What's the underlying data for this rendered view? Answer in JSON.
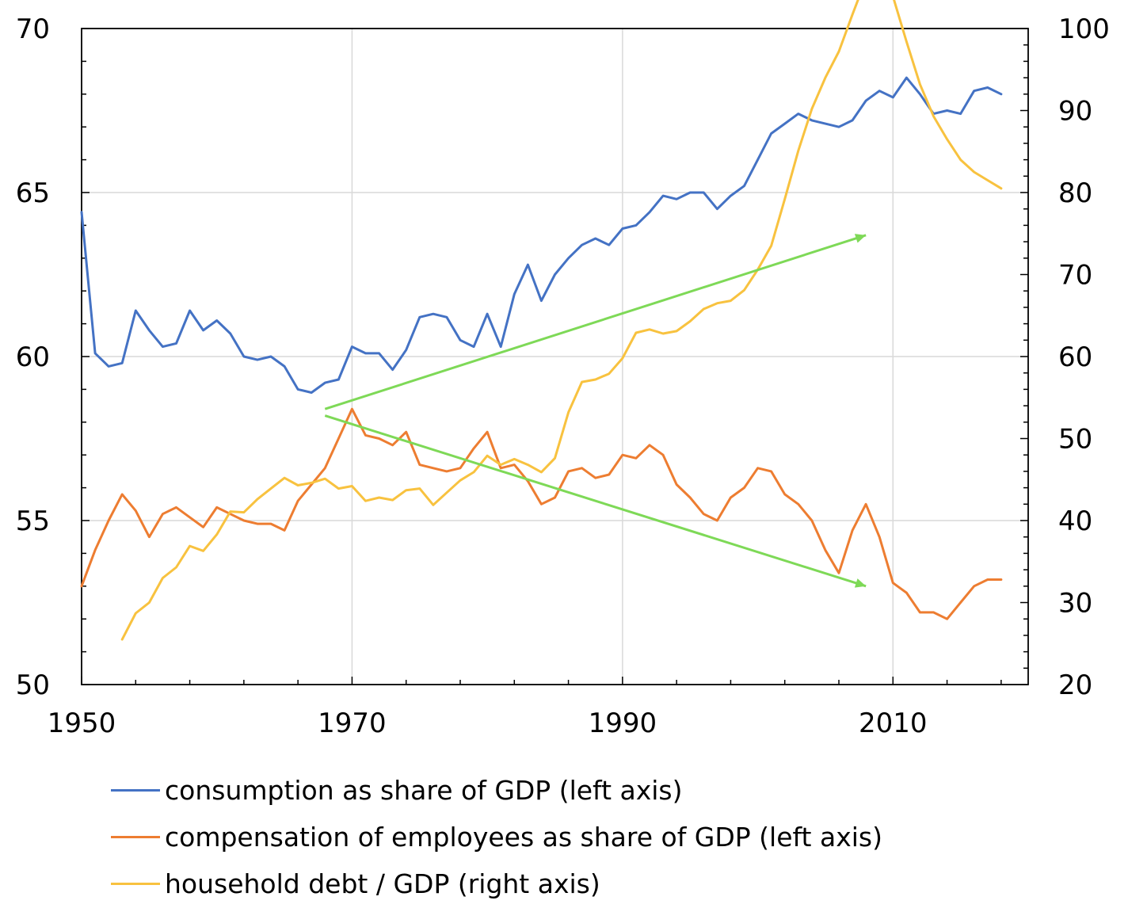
{
  "chart_data": {
    "type": "line",
    "left_axis": {
      "ylim": [
        50,
        70
      ],
      "ticks": [
        "50",
        "55",
        "60",
        "65",
        "70"
      ]
    },
    "right_axis": {
      "ylim": [
        20,
        100
      ],
      "ticks": [
        "20",
        "30",
        "40",
        "50",
        "60",
        "70",
        "80",
        "90",
        "100"
      ]
    },
    "x_axis": {
      "xlim": [
        1950,
        2020
      ],
      "ticks": [
        "1950",
        "1970",
        "1990",
        "2010"
      ]
    },
    "grid": true,
    "legend_position": "bottom-left",
    "series": [
      {
        "name": "consumption as share of GDP (left axis)",
        "axis": "left",
        "color": "#4472C4",
        "x": [
          1950,
          1951,
          1952,
          1953,
          1954,
          1955,
          1956,
          1957,
          1958,
          1959,
          1960,
          1961,
          1962,
          1963,
          1964,
          1965,
          1966,
          1967,
          1968,
          1969,
          1970,
          1971,
          1972,
          1973,
          1974,
          1975,
          1976,
          1977,
          1978,
          1979,
          1980,
          1981,
          1982,
          1983,
          1984,
          1985,
          1986,
          1987,
          1988,
          1989,
          1990,
          1991,
          1992,
          1993,
          1994,
          1995,
          1996,
          1997,
          1998,
          1999,
          2000,
          2001,
          2002,
          2003,
          2004,
          2005,
          2006,
          2007,
          2008,
          2009,
          2010,
          2011,
          2012,
          2013,
          2014,
          2015,
          2016,
          2017,
          2018
        ],
        "values": [
          64.4,
          60.1,
          59.7,
          59.8,
          61.4,
          60.8,
          60.3,
          60.4,
          61.4,
          60.8,
          61.1,
          60.7,
          60.0,
          59.9,
          60.0,
          59.7,
          59.0,
          58.9,
          59.2,
          59.3,
          60.3,
          60.1,
          60.1,
          59.6,
          60.2,
          61.2,
          61.3,
          61.2,
          60.5,
          60.3,
          61.3,
          60.3,
          61.9,
          62.8,
          61.7,
          62.5,
          63.0,
          63.4,
          63.6,
          63.4,
          63.9,
          64.0,
          64.4,
          64.9,
          64.8,
          65.0,
          65.0,
          64.5,
          64.9,
          65.2,
          66.0,
          66.8,
          67.1,
          67.4,
          67.2,
          67.1,
          67.0,
          67.2,
          67.8,
          68.1,
          67.9,
          68.5,
          68.0,
          67.4,
          67.5,
          67.4,
          68.1,
          68.2,
          68.0
        ]
      },
      {
        "name": "compensation of employees as share of GDP (left axis)",
        "axis": "left",
        "color": "#ED7D31",
        "x": [
          1950,
          1951,
          1952,
          1953,
          1954,
          1955,
          1956,
          1957,
          1958,
          1959,
          1960,
          1961,
          1962,
          1963,
          1964,
          1965,
          1966,
          1967,
          1968,
          1969,
          1970,
          1971,
          1972,
          1973,
          1974,
          1975,
          1976,
          1977,
          1978,
          1979,
          1980,
          1981,
          1982,
          1983,
          1984,
          1985,
          1986,
          1987,
          1988,
          1989,
          1990,
          1991,
          1992,
          1993,
          1994,
          1995,
          1996,
          1997,
          1998,
          1999,
          2000,
          2001,
          2002,
          2003,
          2004,
          2005,
          2006,
          2007,
          2008,
          2009,
          2010,
          2011,
          2012,
          2013,
          2014,
          2015,
          2016,
          2017,
          2018
        ],
        "values": [
          53.0,
          54.1,
          55.0,
          55.8,
          55.3,
          54.5,
          55.2,
          55.4,
          55.1,
          54.8,
          55.4,
          55.2,
          55.0,
          54.9,
          54.9,
          54.7,
          55.6,
          56.1,
          56.6,
          57.5,
          58.4,
          57.6,
          57.5,
          57.3,
          57.7,
          56.7,
          56.6,
          56.5,
          56.6,
          57.2,
          57.7,
          56.6,
          56.7,
          56.2,
          55.5,
          55.7,
          56.5,
          56.6,
          56.3,
          56.4,
          57.0,
          56.9,
          57.3,
          57.0,
          56.1,
          55.7,
          55.2,
          55.0,
          55.7,
          56.0,
          56.6,
          56.5,
          55.8,
          55.5,
          55.0,
          54.1,
          53.4,
          54.7,
          55.5,
          54.5,
          53.1,
          52.8,
          52.2,
          52.2,
          52.0,
          52.5,
          53.0,
          53.2,
          53.2
        ]
      },
      {
        "name": "household debt / GDP (right axis)",
        "axis": "right",
        "color": "#F8C23F",
        "x": [
          1953,
          1954,
          1955,
          1956,
          1957,
          1958,
          1959,
          1960,
          1961,
          1962,
          1963,
          1964,
          1965,
          1966,
          1967,
          1968,
          1969,
          1970,
          1971,
          1972,
          1973,
          1974,
          1975,
          1976,
          1977,
          1978,
          1979,
          1980,
          1981,
          1982,
          1983,
          1984,
          1985,
          1986,
          1987,
          1988,
          1989,
          1990,
          1991,
          1992,
          1993,
          1994,
          1995,
          1996,
          1997,
          1998,
          1999,
          2000,
          2001,
          2002,
          2003,
          2004,
          2005,
          2006,
          2007,
          2008,
          2009,
          2010,
          2011,
          2012,
          2013,
          2014,
          2015,
          2016,
          2017,
          2018
        ],
        "values": [
          25.5,
          28.7,
          30.0,
          33.0,
          34.3,
          36.9,
          36.3,
          38.3,
          41.1,
          41.0,
          42.6,
          43.9,
          45.2,
          44.3,
          44.6,
          45.1,
          43.9,
          44.2,
          42.4,
          42.8,
          42.5,
          43.7,
          43.9,
          41.9,
          43.4,
          44.9,
          45.9,
          47.9,
          46.8,
          47.5,
          46.8,
          45.9,
          47.6,
          53.2,
          56.9,
          57.2,
          57.9,
          59.8,
          62.9,
          63.3,
          62.8,
          63.1,
          64.3,
          65.8,
          66.5,
          66.8,
          68.1,
          70.6,
          73.5,
          79.2,
          85.1,
          90.2,
          94.0,
          97.2,
          101.7,
          106.0,
          107.0,
          103.9,
          98.4,
          93.2,
          89.3,
          86.5,
          84.0,
          82.5,
          81.5,
          80.5
        ]
      }
    ]
  },
  "trend_arrows": [
    {
      "color": "#7ED957",
      "from": [
        1968,
        58.4
      ],
      "to": [
        2008,
        63.7
      ]
    },
    {
      "color": "#7ED957",
      "from": [
        1968,
        58.2
      ],
      "to": [
        2008,
        53.0
      ]
    }
  ],
  "legend": [
    {
      "label": "consumption as share of GDP (left axis)",
      "color": "#4472C4"
    },
    {
      "label": "compensation of employees as share of GDP (left axis)",
      "color": "#ED7D31"
    },
    {
      "label": "household debt / GDP (right axis)",
      "color": "#F8C23F"
    }
  ]
}
